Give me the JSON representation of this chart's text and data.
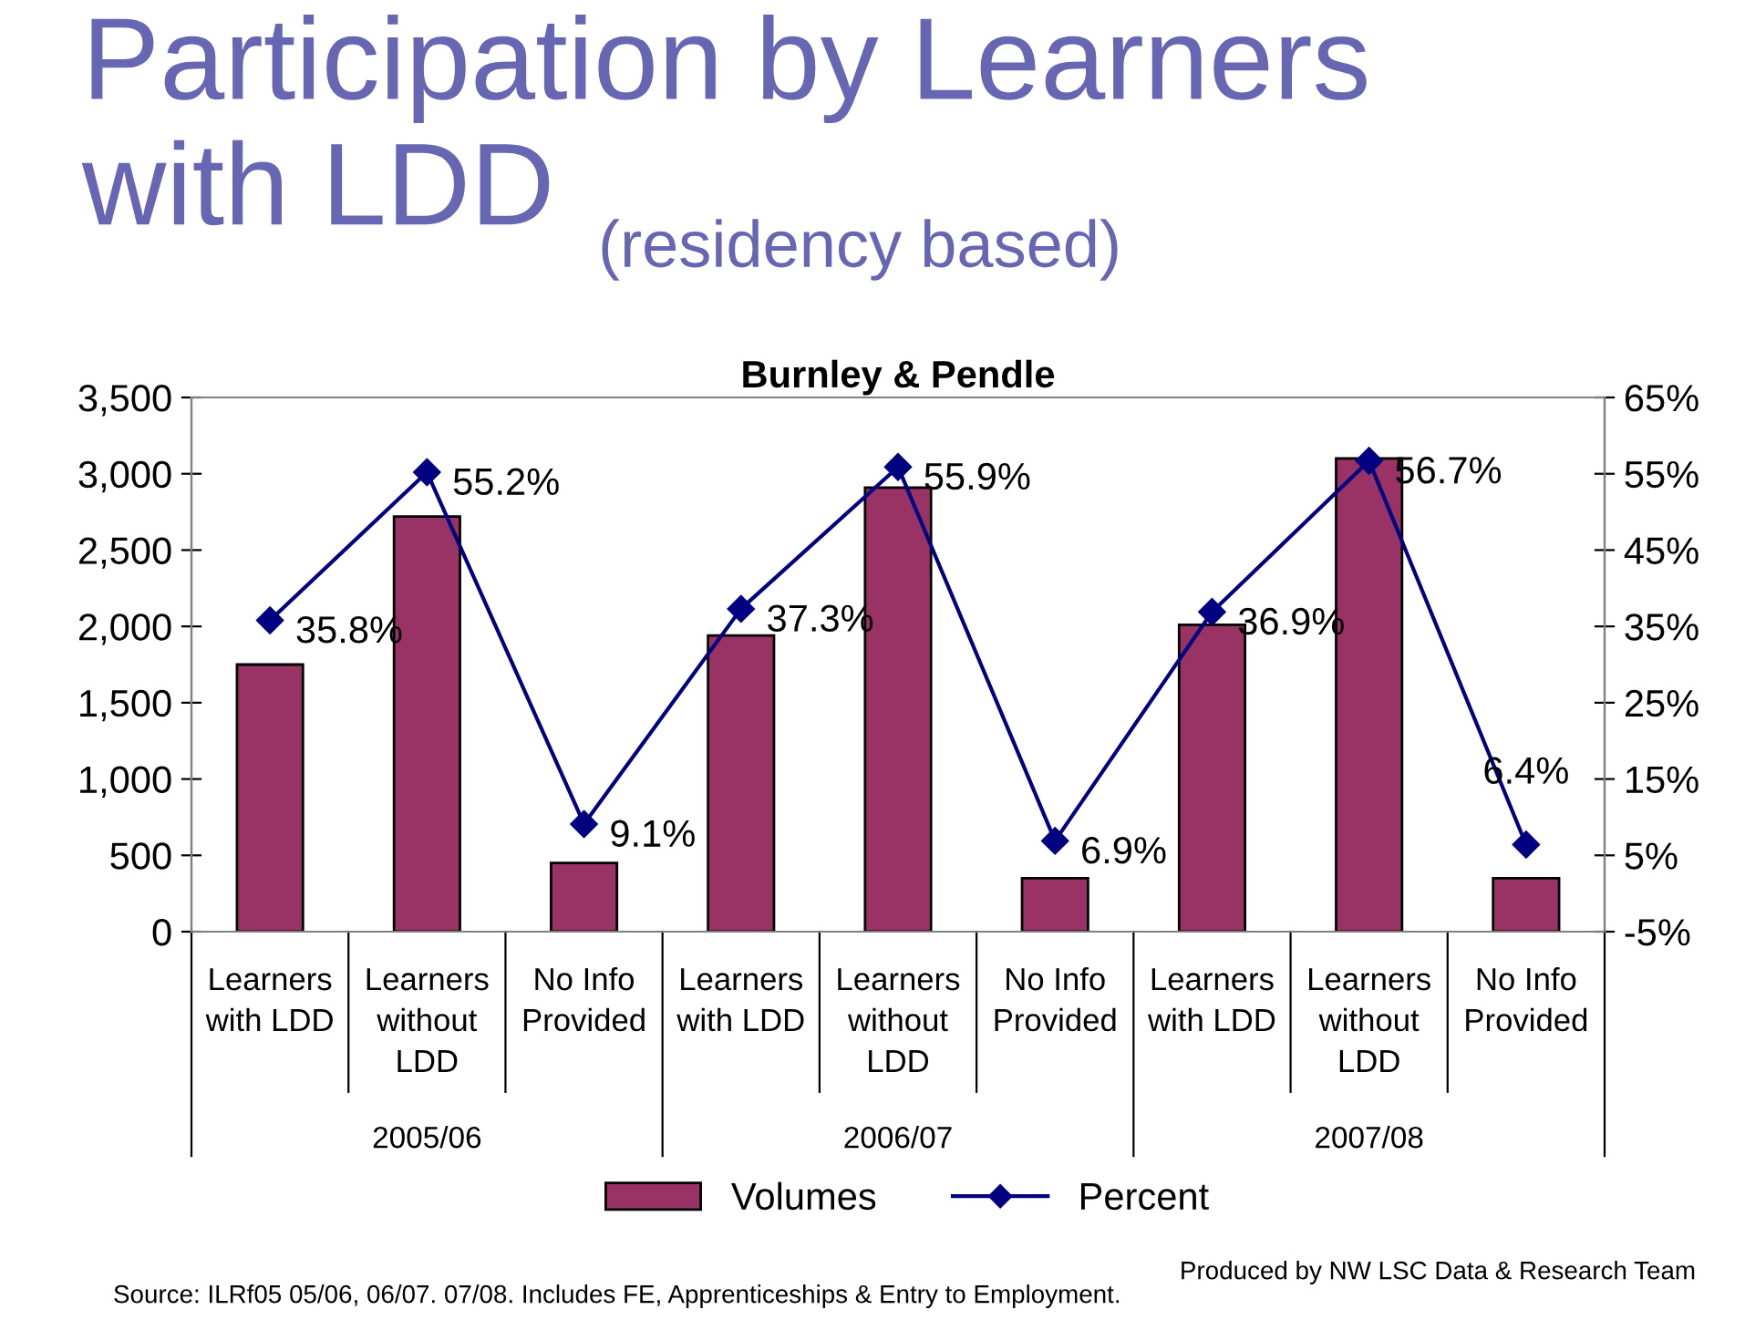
{
  "chart_data": {
    "type": "bar",
    "title": "Burnley & Pendle",
    "categories": [
      "Learners\nwith LDD",
      "Learners\nwithout\nLDD",
      "No Info\nProvided",
      "Learners\nwith LDD",
      "Learners\nwithout\nLDD",
      "No Info\nProvided",
      "Learners\nwith LDD",
      "Learners\nwithout\nLDD",
      "No Info\nProvided"
    ],
    "series": [
      {
        "name": "Volumes",
        "color": "#993366",
        "values": [
          1750,
          2720,
          450,
          1940,
          2910,
          350,
          2010,
          3100,
          350
        ]
      },
      {
        "name": "Percent",
        "type": "line",
        "axis": "y2",
        "color": "#000080",
        "marker": "diamond",
        "line_style": "solid",
        "values": [
          35.8,
          55.2,
          9.1,
          37.3,
          55.9,
          6.9,
          36.9,
          56.7,
          6.4
        ],
        "value_labels": [
          "35.8%",
          "55.2%",
          "9.1%",
          "37.3%",
          "55.9%",
          "6.9%",
          "36.9%",
          "56.7%",
          "6.4%"
        ]
      }
    ],
    "ylim": [
      0,
      3500
    ],
    "yticks": [
      0,
      {
        "value": 500,
        "label": "500"
      },
      {
        "value": 1000,
        "label": "1,000"
      },
      {
        "value": 1500,
        "label": "1,500"
      },
      {
        "value": 2000,
        "label": "2,000"
      },
      {
        "value": 2500,
        "label": "2,500"
      },
      {
        "value": 3000,
        "label": "3,000"
      },
      {
        "value": 3500,
        "label": "3,500"
      }
    ],
    "y2lim": [
      -5,
      65
    ],
    "y2ticks": [
      {
        "value": -5,
        "label": "-5%"
      },
      {
        "value": 5,
        "label": "5%"
      },
      {
        "value": 15,
        "label": "15%"
      },
      {
        "value": 25,
        "label": "25%"
      },
      {
        "value": 35,
        "label": "35%"
      },
      {
        "value": 45,
        "label": "45%"
      },
      {
        "value": 55,
        "label": "55%"
      },
      {
        "value": 65,
        "label": "65%"
      }
    ],
    "grid": false,
    "legend": "bottom",
    "annotations": [
      "Participation by Learners\nwith LDD",
      "(residency based)",
      "2005/06",
      "2006/07",
      "2007/08",
      "Produced by NW LSC Data & Research Team",
      "Source: ILRf05 05/06, 06/07. 07/08. Includes FE, Apprenticeships & Entry to Employment."
    ]
  }
}
